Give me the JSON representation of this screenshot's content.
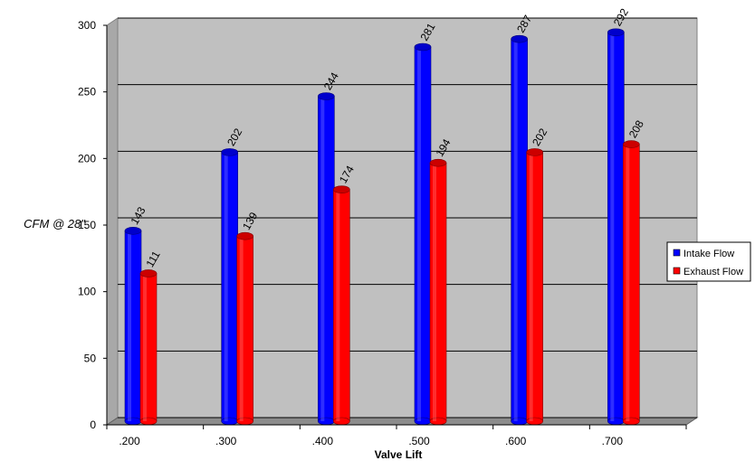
{
  "chart_data": {
    "type": "bar",
    "x_label": "Valve Lift",
    "y_label": "CFM @ 28\"",
    "categories": [
      ".200",
      ".300",
      ".400",
      ".500",
      ".600",
      ".700"
    ],
    "series": [
      {
        "name": "Intake Flow",
        "color": "#0000ff",
        "values": [
          143,
          202,
          244,
          281,
          287,
          292
        ]
      },
      {
        "name": "Exhaust Flow",
        "color": "#ff0000",
        "values": [
          111,
          139,
          174,
          194,
          202,
          208
        ]
      }
    ],
    "ylim": [
      0,
      300
    ],
    "yticks": [
      0,
      50,
      100,
      150,
      200,
      250,
      300
    ],
    "grid": true,
    "legend": "right"
  }
}
